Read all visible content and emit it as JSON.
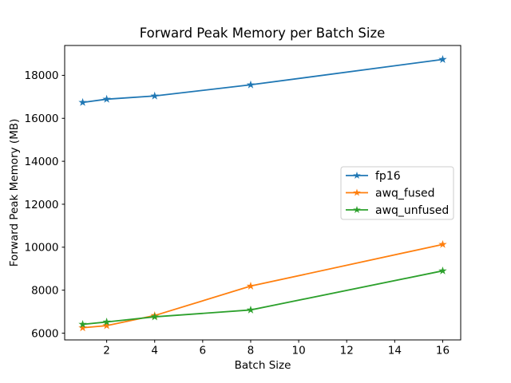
{
  "chart_data": {
    "type": "line",
    "title": "Forward Peak Memory per Batch Size",
    "xlabel": "Batch Size",
    "ylabel": "Forward Peak Memory (MB)",
    "x": [
      1,
      2,
      4,
      8,
      16
    ],
    "series": [
      {
        "name": "fp16",
        "color": "#1f77b4",
        "values": [
          16740,
          16890,
          17040,
          17560,
          18740
        ]
      },
      {
        "name": "awq_fused",
        "color": "#ff7f0e",
        "values": [
          6250,
          6350,
          6820,
          8190,
          10130
        ]
      },
      {
        "name": "awq_unfused",
        "color": "#2ca02c",
        "values": [
          6410,
          6520,
          6760,
          7080,
          8900
        ]
      }
    ],
    "xticks": [
      2,
      4,
      6,
      8,
      10,
      12,
      14,
      16
    ],
    "yticks": [
      6000,
      8000,
      10000,
      12000,
      14000,
      16000,
      18000
    ],
    "xlim": [
      0.25,
      16.75
    ],
    "ylim": [
      5685,
      19390
    ],
    "grid": false,
    "marker": "star",
    "legend_position": "center right",
    "background_color": "#ffffff",
    "axis_color": "#000000",
    "legend_border_color": "#cccccc"
  }
}
